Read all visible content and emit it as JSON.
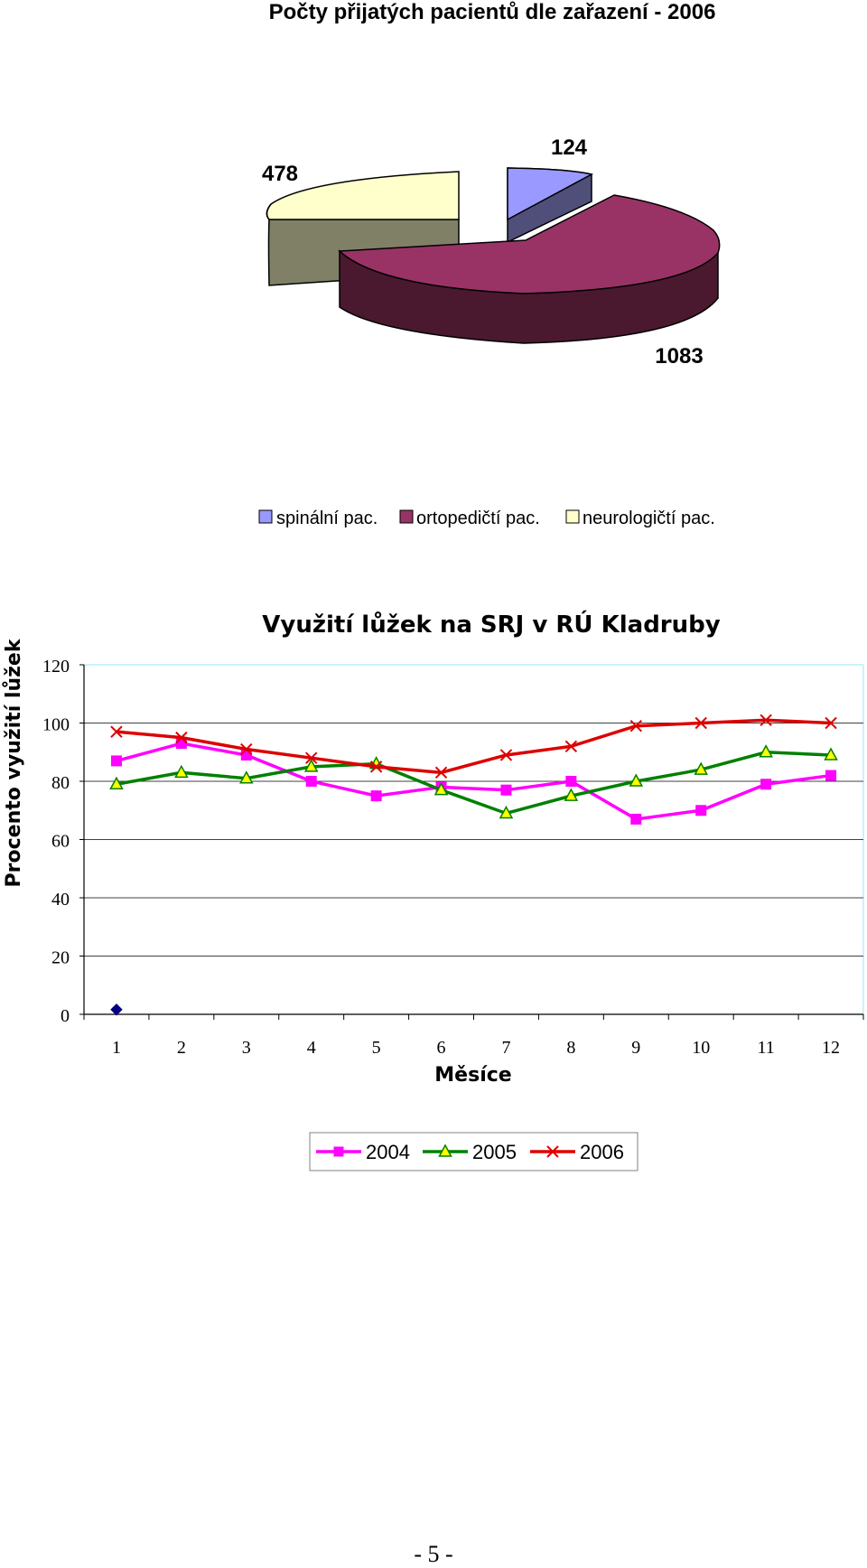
{
  "chart_data": [
    {
      "type": "pie",
      "title": "Počty přijatých pacientů dle zařazení - 2006",
      "labels": [
        "spinální pac.",
        "ortopedičtí pac.",
        "neurologičtí pac."
      ],
      "values": [
        124,
        1083,
        478
      ],
      "colors": [
        "#9999ff",
        "#993366",
        "#ffffcc"
      ],
      "legend_position": "bottom"
    },
    {
      "type": "line",
      "title": "Využití lůžek na SRJ v RÚ Kladruby",
      "xlabel": "Měsíce",
      "ylabel": "Procento využití lůžek",
      "categories": [
        "1",
        "2",
        "3",
        "4",
        "5",
        "6",
        "7",
        "8",
        "9",
        "10",
        "11",
        "12"
      ],
      "yticks": [
        "0",
        "20",
        "40",
        "60",
        "80",
        "100",
        "120"
      ],
      "ylim": [
        0,
        120
      ],
      "grid": true,
      "legend_position": "bottom",
      "series": [
        {
          "name": "2004",
          "color": "#ff00ff",
          "marker": "square",
          "values": [
            87,
            93,
            89,
            80,
            75,
            78,
            77,
            80,
            67,
            70,
            79,
            82
          ]
        },
        {
          "name": "2005",
          "color": "#008000",
          "marker": "triangle",
          "values": [
            79,
            83,
            81,
            85,
            86,
            77,
            69,
            75,
            80,
            84,
            90,
            89
          ]
        },
        {
          "name": "2006",
          "color": "#dd0000",
          "marker": "x",
          "values": [
            97,
            95,
            91,
            88,
            85,
            83,
            89,
            92,
            99,
            100,
            101,
            100
          ]
        }
      ],
      "extra_point": {
        "x": "1",
        "y": 1,
        "color": "#000080",
        "marker": "diamond"
      }
    }
  ],
  "page_number": "- 5 -"
}
